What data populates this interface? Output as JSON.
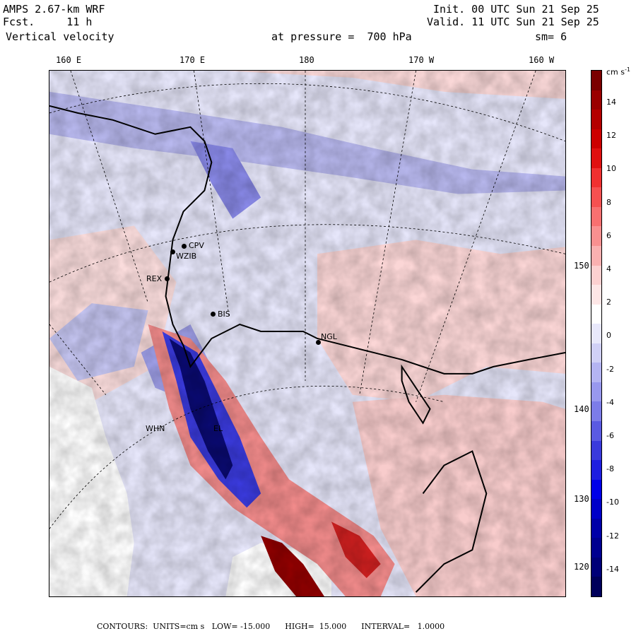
{
  "header": {
    "model": "AMPS 2.67-km WRF",
    "forecast": "Fcst.     11 h",
    "field": "Vertical velocity",
    "init": "Init. 00 UTC Sun 21 Sep 25",
    "valid": "Valid. 11 UTC Sun 21 Sep 25",
    "pressure": "at pressure =  700 hPa",
    "smoothing": "sm= 6"
  },
  "longitude_labels": [
    "160 E",
    "170 E",
    "180",
    "170 W",
    "160 W"
  ],
  "latitude_labels": [
    "150 W",
    "140 W",
    "130 W",
    "120 W"
  ],
  "stations": [
    {
      "name": "CPV"
    },
    {
      "name": "WZIB"
    },
    {
      "name": "REX"
    },
    {
      "name": "BIS"
    },
    {
      "name": "NGL"
    },
    {
      "name": "WHN"
    },
    {
      "name": "EL"
    }
  ],
  "colorbar": {
    "units": "cm s",
    "units_exp": "-1",
    "ticks": [
      "14",
      "12",
      "10",
      "8",
      "6",
      "4",
      "2",
      "0",
      "-2",
      "-4",
      "-6",
      "-8",
      "-10",
      "-12",
      "-14"
    ],
    "colors": [
      "#7a0000",
      "#9a0000",
      "#b40000",
      "#cc0000",
      "#e01010",
      "#f03030",
      "#f65050",
      "#f87070",
      "#f99090",
      "#fab0b0",
      "#fcd0d0",
      "#fde6e6",
      "#ffffff",
      "#e8e8fb",
      "#d0d0f6",
      "#b4b4f2",
      "#9898ee",
      "#7c7ce8",
      "#5a5ae2",
      "#3a3adc",
      "#1e1ee0",
      "#0000e8",
      "#0000c8",
      "#0000a8",
      "#000090",
      "#000078",
      "#00005a"
    ]
  },
  "footer": {
    "text": "CONTOURS:  UNITS=cm s   LOW= -15.000      HIGH=  15.000      INTERVAL=   1.0000"
  }
}
